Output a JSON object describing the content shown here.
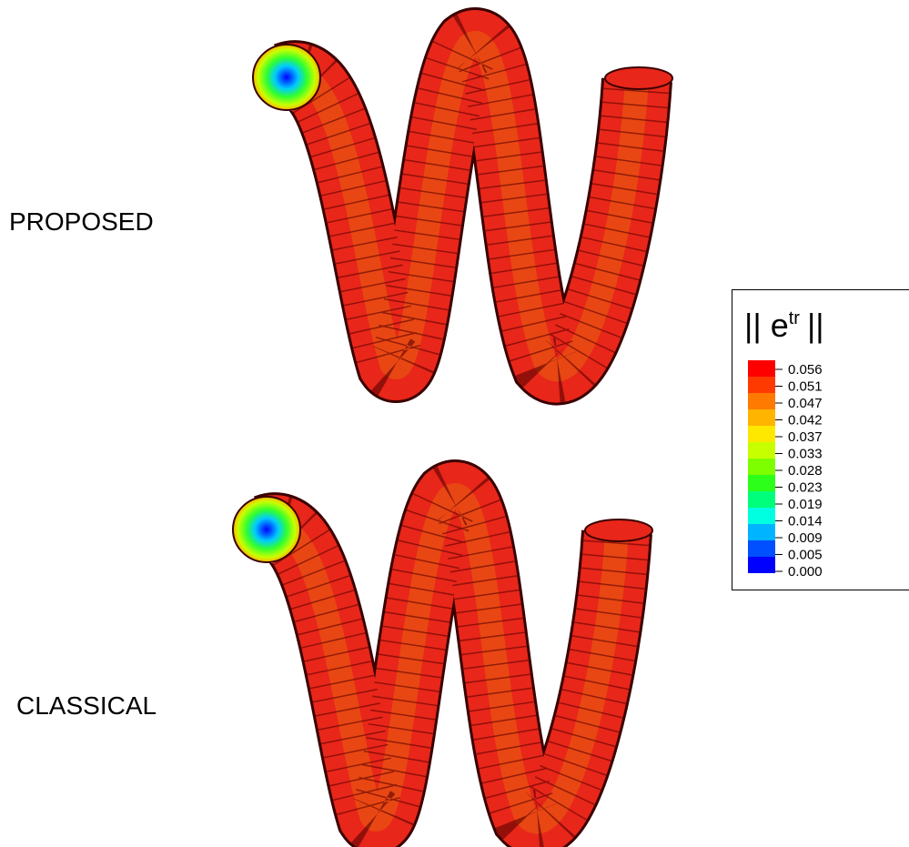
{
  "labels": {
    "top": "PROPOSED",
    "bottom": "CLASSICAL"
  },
  "legend": {
    "title_prefix": "|| e",
    "title_sup": "tr",
    "title_suffix": "||",
    "values": [
      "0.056",
      "0.051",
      "0.047",
      "0.042",
      "0.037",
      "0.033",
      "0.028",
      "0.023",
      "0.019",
      "0.014",
      "0.009",
      "0.005",
      "0.000"
    ],
    "colors": [
      "#ff0000",
      "#ff3a00",
      "#ff7a00",
      "#ffb400",
      "#ffe800",
      "#c8ff00",
      "#7dff00",
      "#2cff1a",
      "#00ff7a",
      "#00ffe0",
      "#00b4ff",
      "#0050ff",
      "#0000ff"
    ]
  }
}
